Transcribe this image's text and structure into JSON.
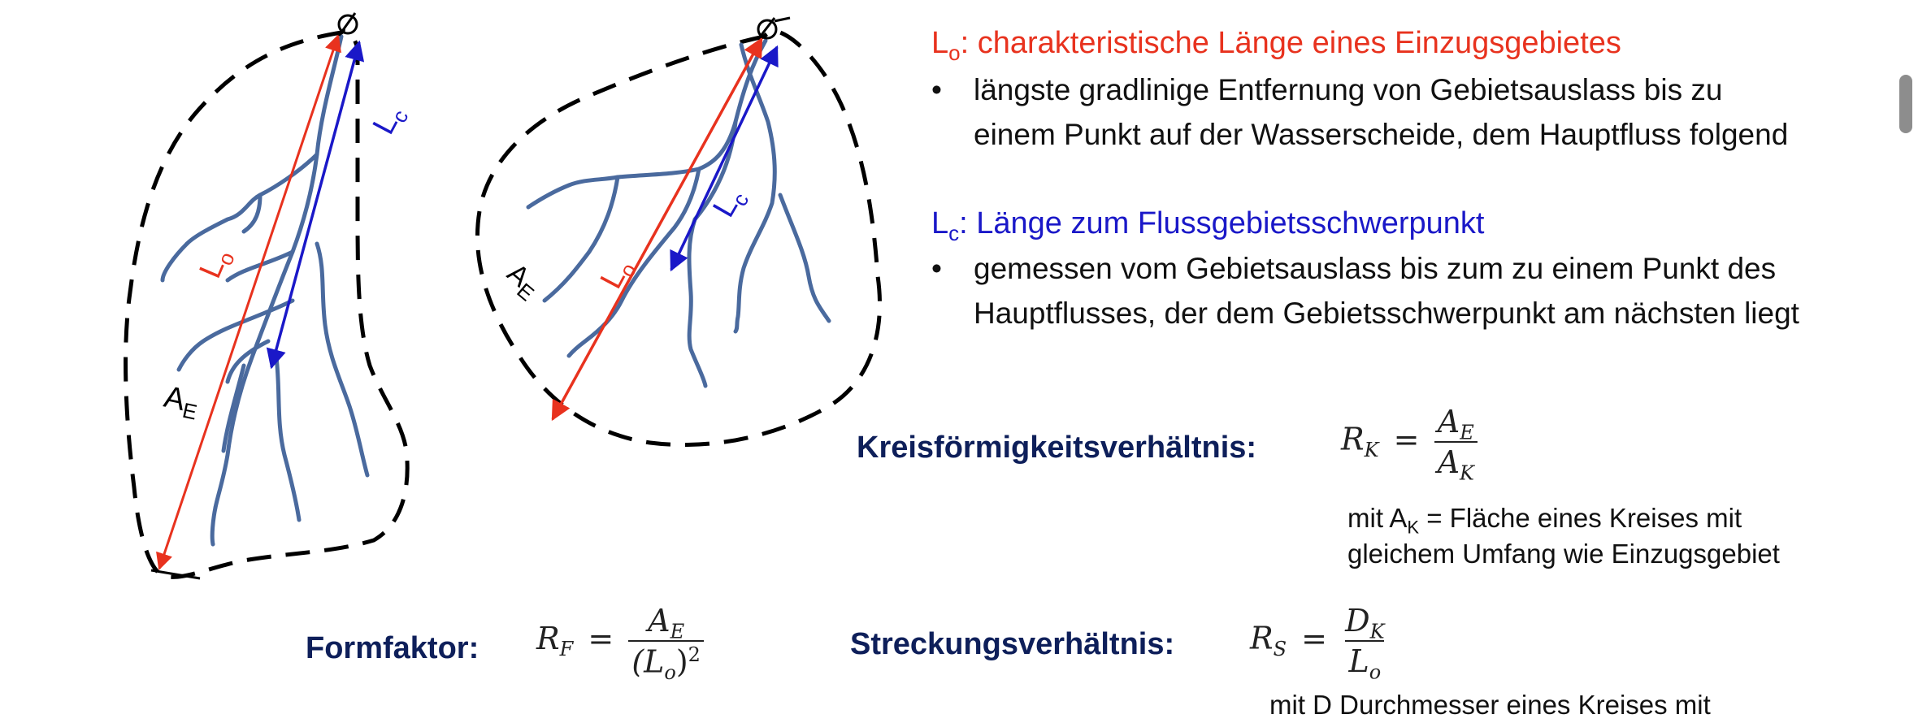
{
  "diagram": {
    "left_basin": {
      "lo_label": "Lo",
      "lc_label": "Lc",
      "area_label": "AE"
    },
    "right_basin": {
      "lo_label": "Lo",
      "lc_label": "Lc",
      "area_label": "AE"
    },
    "colors": {
      "red": "#e8321e",
      "blue": "#1a18c8",
      "river": "#4a6a9e",
      "boundary": "#000000"
    }
  },
  "lo_section": {
    "symbol": "L",
    "symbol_sub": "o",
    "heading_rest": ": charakteristische Länge eines Einzugsgebietes",
    "bullet": "•",
    "bullet_line1": "längste gradlinige Entfernung von Gebietsauslass bis zu",
    "bullet_line2": "einem Punkt auf der Wasserscheide, dem Hauptfluss folgend"
  },
  "lc_section": {
    "symbol": "L",
    "symbol_sub": "c",
    "heading_rest": ": Länge zum Flussgebietsschwerpunkt",
    "bullet": "•",
    "bullet_line1": "gemessen vom Gebietsauslass bis zum zu einem Punkt des",
    "bullet_line2": "Hauptflusses, der dem Gebietsschwerpunkt am nächsten liegt"
  },
  "kreis": {
    "label": "Kreisförmigkeitsverhältnis:",
    "lhs": "R",
    "lhs_sub": "K",
    "eq": "=",
    "num": "A",
    "num_sub": "E",
    "den": "A",
    "den_sub": "K",
    "note_prefix": "mit A",
    "note_sub": "K",
    "note_line1_rest": " = Fläche eines Kreises mit",
    "note_line2": "gleichem Umfang wie Einzugsgebiet"
  },
  "form": {
    "label": "Formfaktor:",
    "lhs": "R",
    "lhs_sub": "F",
    "eq": "=",
    "num": "A",
    "num_sub": "E",
    "den_open": "(L",
    "den_sub": "o",
    "den_close": ")",
    "den_sup": "2"
  },
  "streck": {
    "label": "Streckungsverhältnis:",
    "lhs": "R",
    "lhs_sub": "S",
    "eq": "=",
    "num": "D",
    "num_sub": "K",
    "den": "L",
    "den_sub": "o",
    "cutoff_text": "mit D  Durchmesser eines Kreises mit"
  }
}
